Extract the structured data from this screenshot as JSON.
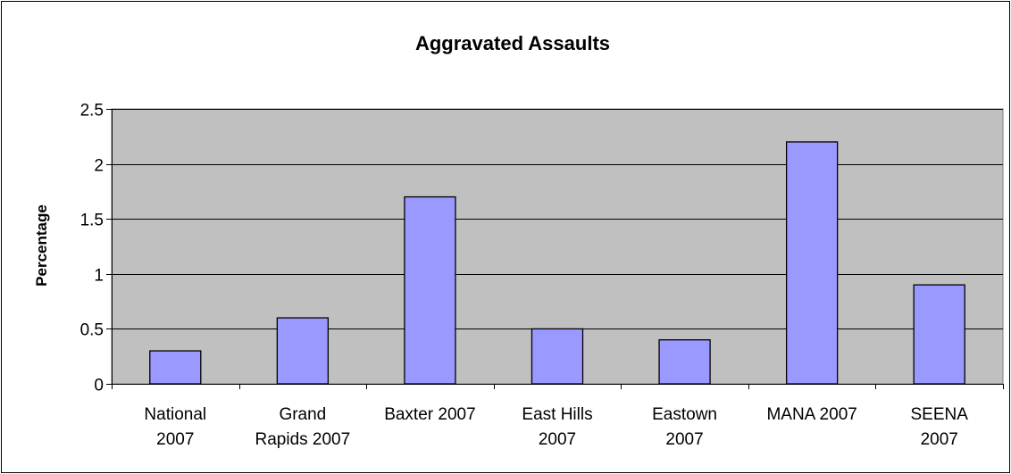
{
  "chart_data": {
    "type": "bar",
    "title": "Aggravated Assaults",
    "xlabel": "",
    "ylabel": "Percentage",
    "categories": [
      [
        "National",
        "2007"
      ],
      [
        "Grand",
        "Rapids 2007"
      ],
      [
        "Baxter 2007"
      ],
      [
        "East Hills",
        "2007"
      ],
      [
        "Eastown",
        "2007"
      ],
      [
        "MANA 2007"
      ],
      [
        "SEENA",
        "2007"
      ]
    ],
    "values": [
      0.3,
      0.6,
      1.7,
      0.5,
      0.4,
      2.2,
      0.9
    ],
    "ylim": [
      0,
      2.5
    ],
    "yticks": [
      "0",
      "0.5",
      "1",
      "1.5",
      "2",
      "2.5"
    ],
    "grid": true,
    "legend": "none",
    "colors": {
      "bar": "#9999ff",
      "plot_background": "#c0c0c0",
      "gridline": "#000000"
    }
  }
}
